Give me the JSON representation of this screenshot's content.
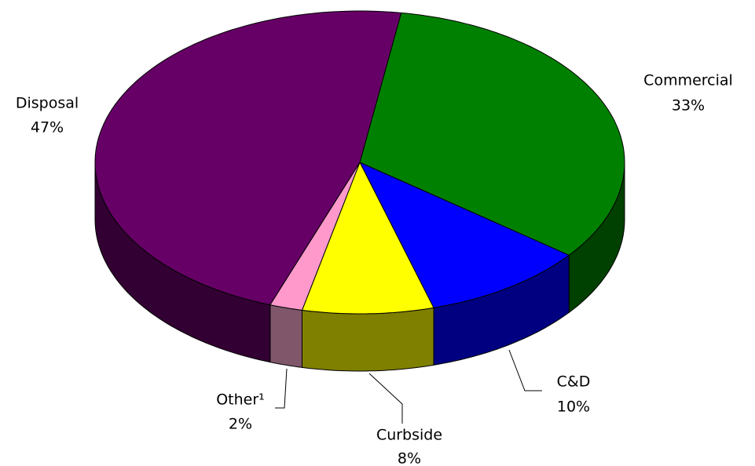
{
  "chart_data": {
    "type": "pie3d",
    "categories": [
      "Commercial",
      "C&D",
      "Curbside",
      "Other¹",
      "Disposal"
    ],
    "values": [
      33,
      10,
      8,
      2,
      47
    ],
    "value_labels": [
      "33%",
      "10%",
      "8%",
      "2%",
      "47%"
    ],
    "colors": [
      "#008000",
      "#0000ff",
      "#ffff00",
      "#ff99cc",
      "#660066"
    ],
    "side_colors": [
      "#004000",
      "#000080",
      "#808000",
      "#80566a",
      "#330033"
    ]
  }
}
